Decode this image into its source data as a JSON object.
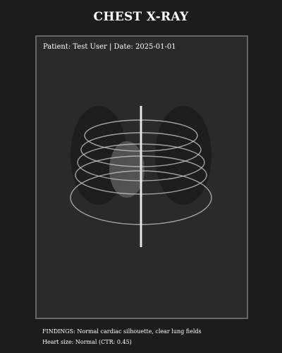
{
  "header": {
    "title": "CHEST X-RAY"
  },
  "viewer": {
    "patient_info": "Patient: Test User | Date: 2025-01-01"
  },
  "report": {
    "findings": "FINDINGS: Normal cardiac silhouette, clear lung fields",
    "heart_size": "Heart size: Normal (CTR: 0.45)"
  },
  "colors": {
    "background": "#1c1c1c",
    "panel": "#2a2a2a",
    "frame_border": "#666666",
    "lung": "#1e1e1e",
    "heart": "#5a5a5a",
    "rib": "#cccccc",
    "spine": "#e8e8e8",
    "text": "#ffffff"
  },
  "icons": [
    "left-lung-shape",
    "right-lung-shape",
    "heart-shape",
    "rib-ellipse",
    "spine-line"
  ]
}
